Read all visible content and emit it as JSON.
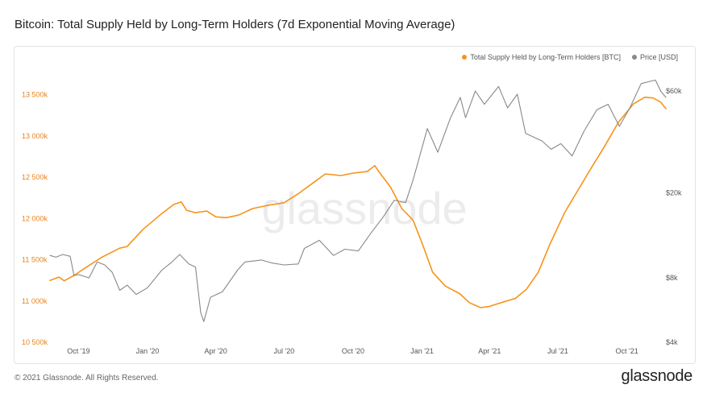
{
  "title": "Bitcoin: Total Supply Held by Long-Term Holders (7d Exponential Moving Average)",
  "footer": {
    "copyright": "© 2021 Glassnode. All Rights Reserved.",
    "logo": "glassnode",
    "watermark": "glassnode"
  },
  "colors": {
    "lth": "#f7931a",
    "price": "#888888",
    "left_axis_text": "#e8841a",
    "grid": "#f1f1f1"
  },
  "chart_data": {
    "type": "line",
    "title": "Bitcoin: Total Supply Held by Long-Term Holders (7d Exponential Moving Average)",
    "x_axis": {
      "range": [
        "2019-08-24",
        "2021-11-22"
      ],
      "ticks": [
        {
          "label": "Oct '19",
          "date": "2019-10-01"
        },
        {
          "label": "Jan '20",
          "date": "2020-01-01"
        },
        {
          "label": "Apr '20",
          "date": "2020-04-01"
        },
        {
          "label": "Jul '20",
          "date": "2020-07-01"
        },
        {
          "label": "Oct '20",
          "date": "2020-10-01"
        },
        {
          "label": "Jan '21",
          "date": "2021-01-01"
        },
        {
          "label": "Apr '21",
          "date": "2021-04-01"
        },
        {
          "label": "Jul '21",
          "date": "2021-07-01"
        },
        {
          "label": "Oct '21",
          "date": "2021-10-01"
        }
      ]
    },
    "y_left": {
      "range": [
        10500000,
        13750000
      ],
      "ticks": [
        {
          "label": "10 500k",
          "value": 10500000
        },
        {
          "label": "11 000k",
          "value": 11000000
        },
        {
          "label": "11 500k",
          "value": 11500000
        },
        {
          "label": "12 000k",
          "value": 12000000
        },
        {
          "label": "12 500k",
          "value": 12500000
        },
        {
          "label": "13 000k",
          "value": 13000000
        },
        {
          "label": "13 500k",
          "value": 13500000
        }
      ]
    },
    "y_right": {
      "scale": "log",
      "range": [
        4000,
        72000
      ],
      "ticks": [
        {
          "label": "$4k",
          "value": 4000
        },
        {
          "label": "$8k",
          "value": 8000
        },
        {
          "label": "$20k",
          "value": 20000
        },
        {
          "label": "$60k",
          "value": 60000
        }
      ]
    },
    "grid": false,
    "legend_position": "top-right",
    "series": [
      {
        "name": "Total Supply Held by Long-Term Holders [BTC]",
        "axis": "left",
        "color": "#f7931a",
        "points": [
          [
            "2019-08-24",
            11250000
          ],
          [
            "2019-09-05",
            11290000
          ],
          [
            "2019-09-12",
            11245000
          ],
          [
            "2019-09-25",
            11310000
          ],
          [
            "2019-10-15",
            11430000
          ],
          [
            "2019-11-01",
            11530000
          ],
          [
            "2019-11-25",
            11640000
          ],
          [
            "2019-12-05",
            11660000
          ],
          [
            "2019-12-25",
            11860000
          ],
          [
            "2020-01-20",
            12060000
          ],
          [
            "2020-02-05",
            12170000
          ],
          [
            "2020-02-15",
            12200000
          ],
          [
            "2020-02-22",
            12100000
          ],
          [
            "2020-03-05",
            12070000
          ],
          [
            "2020-03-20",
            12090000
          ],
          [
            "2020-04-01",
            12020000
          ],
          [
            "2020-04-15",
            12010000
          ],
          [
            "2020-05-01",
            12040000
          ],
          [
            "2020-05-20",
            12120000
          ],
          [
            "2020-06-10",
            12160000
          ],
          [
            "2020-07-01",
            12190000
          ],
          [
            "2020-07-20",
            12300000
          ],
          [
            "2020-08-10",
            12440000
          ],
          [
            "2020-08-25",
            12540000
          ],
          [
            "2020-09-15",
            12520000
          ],
          [
            "2020-10-01",
            12550000
          ],
          [
            "2020-10-20",
            12570000
          ],
          [
            "2020-10-30",
            12640000
          ],
          [
            "2020-11-05",
            12560000
          ],
          [
            "2020-11-20",
            12380000
          ],
          [
            "2020-12-05",
            12120000
          ],
          [
            "2020-12-20",
            11980000
          ],
          [
            "2021-01-01",
            11700000
          ],
          [
            "2021-01-15",
            11350000
          ],
          [
            "2021-02-01",
            11180000
          ],
          [
            "2021-02-20",
            11090000
          ],
          [
            "2021-03-05",
            10980000
          ],
          [
            "2021-03-20",
            10920000
          ],
          [
            "2021-04-01",
            10935000
          ],
          [
            "2021-04-20",
            10990000
          ],
          [
            "2021-05-05",
            11030000
          ],
          [
            "2021-05-20",
            11140000
          ],
          [
            "2021-06-05",
            11350000
          ],
          [
            "2021-06-20",
            11680000
          ],
          [
            "2021-07-10",
            12070000
          ],
          [
            "2021-07-25",
            12300000
          ],
          [
            "2021-08-15",
            12620000
          ],
          [
            "2021-09-01",
            12870000
          ],
          [
            "2021-09-20",
            13170000
          ],
          [
            "2021-10-10",
            13390000
          ],
          [
            "2021-10-25",
            13470000
          ],
          [
            "2021-11-05",
            13460000
          ],
          [
            "2021-11-15",
            13410000
          ],
          [
            "2021-11-22",
            13330000
          ]
        ]
      },
      {
        "name": "Price [USD]",
        "axis": "right",
        "color": "#888888",
        "points": [
          [
            "2019-08-24",
            10200
          ],
          [
            "2019-09-01",
            10000
          ],
          [
            "2019-09-10",
            10300
          ],
          [
            "2019-09-20",
            10100
          ],
          [
            "2019-09-25",
            8200
          ],
          [
            "2019-10-01",
            8300
          ],
          [
            "2019-10-15",
            8000
          ],
          [
            "2019-10-26",
            9500
          ],
          [
            "2019-11-05",
            9200
          ],
          [
            "2019-11-15",
            8500
          ],
          [
            "2019-11-25",
            7000
          ],
          [
            "2019-12-05",
            7400
          ],
          [
            "2019-12-17",
            6700
          ],
          [
            "2020-01-01",
            7200
          ],
          [
            "2020-01-20",
            8700
          ],
          [
            "2020-02-01",
            9400
          ],
          [
            "2020-02-13",
            10300
          ],
          [
            "2020-02-25",
            9300
          ],
          [
            "2020-03-05",
            9000
          ],
          [
            "2020-03-12",
            5500
          ],
          [
            "2020-03-16",
            5000
          ],
          [
            "2020-03-25",
            6500
          ],
          [
            "2020-04-10",
            6900
          ],
          [
            "2020-04-30",
            8700
          ],
          [
            "2020-05-10",
            9500
          ],
          [
            "2020-06-01",
            9700
          ],
          [
            "2020-06-15",
            9400
          ],
          [
            "2020-07-01",
            9200
          ],
          [
            "2020-07-20",
            9300
          ],
          [
            "2020-07-28",
            11000
          ],
          [
            "2020-08-17",
            12000
          ],
          [
            "2020-09-05",
            10200
          ],
          [
            "2020-09-20",
            10900
          ],
          [
            "2020-10-08",
            10700
          ],
          [
            "2020-10-25",
            13000
          ],
          [
            "2020-11-10",
            15400
          ],
          [
            "2020-11-25",
            18500
          ],
          [
            "2020-12-10",
            18000
          ],
          [
            "2020-12-20",
            23000
          ],
          [
            "2021-01-08",
            40000
          ],
          [
            "2021-01-22",
            31000
          ],
          [
            "2021-02-08",
            45000
          ],
          [
            "2021-02-21",
            56000
          ],
          [
            "2021-02-28",
            45000
          ],
          [
            "2021-03-13",
            60000
          ],
          [
            "2021-03-25",
            52000
          ],
          [
            "2021-04-13",
            63000
          ],
          [
            "2021-04-25",
            50000
          ],
          [
            "2021-05-08",
            58000
          ],
          [
            "2021-05-19",
            38000
          ],
          [
            "2021-06-10",
            35000
          ],
          [
            "2021-06-22",
            32000
          ],
          [
            "2021-07-05",
            34000
          ],
          [
            "2021-07-20",
            29800
          ],
          [
            "2021-08-05",
            39000
          ],
          [
            "2021-08-22",
            49000
          ],
          [
            "2021-09-06",
            52000
          ],
          [
            "2021-09-21",
            41000
          ],
          [
            "2021-10-05",
            50000
          ],
          [
            "2021-10-20",
            65000
          ],
          [
            "2021-11-08",
            67500
          ],
          [
            "2021-11-15",
            60000
          ],
          [
            "2021-11-22",
            56000
          ]
        ]
      }
    ]
  }
}
